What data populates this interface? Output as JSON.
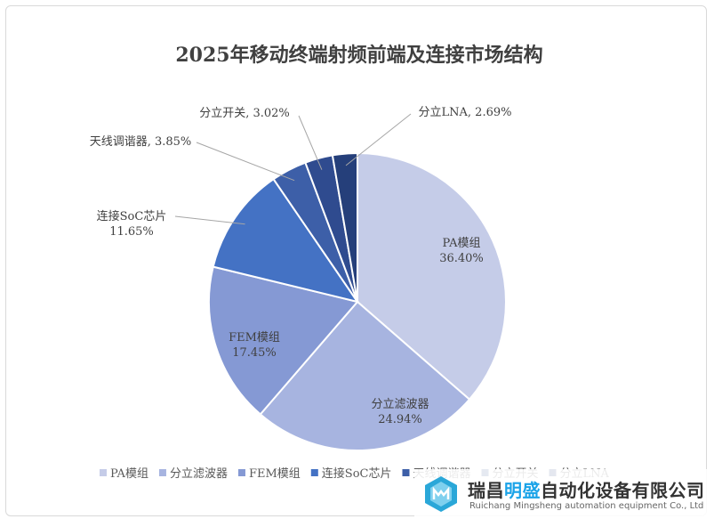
{
  "chart_data": {
    "type": "pie",
    "title": "2025年移动终端射频前端及连接市场结构",
    "categories": [
      "PA模组",
      "分立滤波器",
      "FEM模组",
      "连接SoC芯片",
      "天线调谐器",
      "分立开关",
      "分立LNA"
    ],
    "values": [
      36.4,
      24.94,
      17.45,
      11.65,
      3.85,
      3.02,
      2.69
    ],
    "value_labels": [
      "36.40%",
      "24.94%",
      "17.45%",
      "11.65%",
      "3.85%",
      "3.02%",
      "2.69%"
    ],
    "colors": [
      "#c5cce8",
      "#a7b4e0",
      "#8599d4",
      "#4472c4",
      "#3d5fa8",
      "#2f4b8f",
      "#253f7a"
    ],
    "legend_position": "bottom",
    "start_angle_deg": 0,
    "direction": "clockwise"
  },
  "watermark": {
    "name_part1": "瑞昌",
    "name_highlight": "明盛",
    "name_part2": "自动化设备有限公司",
    "subtitle": "Ruichang Mingsheng automation equipment Co., Ltd"
  }
}
